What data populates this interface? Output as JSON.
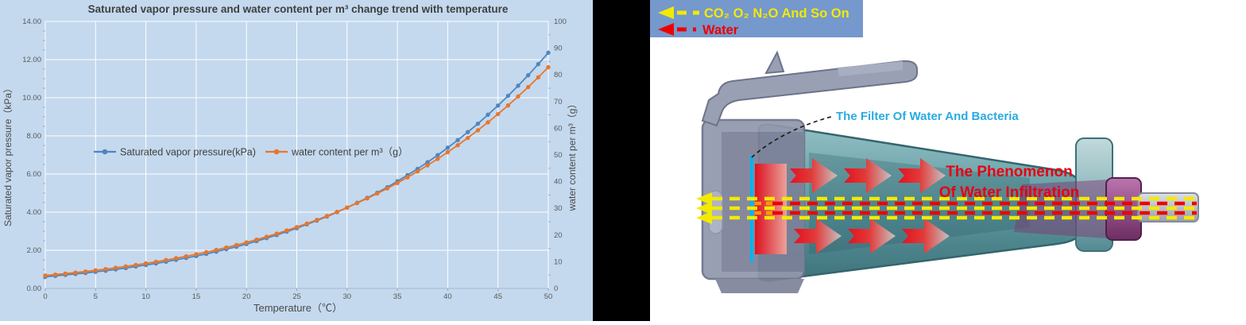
{
  "colors": {
    "chart_bg": "#c4d9ee",
    "gridline": "#ffffff",
    "series_blue": "#4e86c0",
    "series_orange": "#e8762c",
    "legend_bg": "#7598cd",
    "gas_yellow": "#f2ea00",
    "water_red": "#ee0000",
    "filter_cyan": "#00b4f0",
    "label_cyan": "#29abe2",
    "phenomenon_red": "#e60012"
  },
  "chart_data": {
    "type": "line",
    "title": "Saturated vapor pressure and water content per m³ change trend with temperature",
    "xlabel": "Temperature（℃）",
    "ylabel_left": "Saturated vapor pressure（kPa）",
    "ylabel_right": "water content per m³（g）",
    "xlim": [
      0,
      50
    ],
    "ylim_left": [
      0,
      14
    ],
    "ylim_right": [
      0,
      100
    ],
    "grid": true,
    "legend_position": "inside-upper-left",
    "x_tick_values": [
      0,
      5,
      10,
      15,
      20,
      25,
      30,
      35,
      40,
      45,
      50
    ],
    "x_tick_labels": [
      "0",
      "5",
      "10",
      "15",
      "20",
      "25",
      "30",
      "35",
      "40",
      "45",
      "50"
    ],
    "y_left_tick_values": [
      0,
      2,
      4,
      6,
      8,
      10,
      12,
      14
    ],
    "y_left_tick_labels": [
      "0.00",
      "2.00",
      "4.00",
      "6.00",
      "8.00",
      "10.00",
      "12.00",
      "14.00"
    ],
    "y_right_tick_values": [
      0,
      10,
      20,
      30,
      40,
      50,
      60,
      70,
      80,
      90,
      100
    ],
    "y_right_tick_labels": [
      "0",
      "10",
      "20",
      "30",
      "40",
      "50",
      "60",
      "70",
      "80",
      "90",
      "100"
    ],
    "temperatures": [
      0,
      1,
      2,
      3,
      4,
      5,
      6,
      7,
      8,
      9,
      10,
      11,
      12,
      13,
      14,
      15,
      16,
      17,
      18,
      19,
      20,
      21,
      22,
      23,
      24,
      25,
      26,
      27,
      28,
      29,
      30,
      31,
      32,
      33,
      34,
      35,
      36,
      37,
      38,
      39,
      40,
      41,
      42,
      43,
      44,
      45,
      46,
      47,
      48,
      49,
      50
    ],
    "series": [
      {
        "name": "Saturated vapor pressure(kPa)",
        "axis": "left",
        "color": "#4e86c0",
        "values": [
          0.61,
          0.66,
          0.71,
          0.76,
          0.81,
          0.87,
          0.93,
          1.0,
          1.07,
          1.15,
          1.23,
          1.31,
          1.4,
          1.5,
          1.6,
          1.7,
          1.81,
          1.93,
          2.06,
          2.19,
          2.33,
          2.48,
          2.64,
          2.8,
          2.98,
          3.16,
          3.36,
          3.56,
          3.77,
          4.0,
          4.24,
          4.49,
          4.75,
          5.02,
          5.31,
          5.62,
          5.94,
          6.27,
          6.62,
          6.99,
          7.38,
          7.78,
          8.2,
          8.64,
          9.11,
          9.59,
          10.1,
          10.63,
          11.18,
          11.76,
          12.36
        ]
      },
      {
        "name": "water content per m³（g）",
        "axis": "right",
        "color": "#e8762c",
        "values": [
          4.85,
          5.19,
          5.56,
          5.94,
          6.35,
          6.79,
          7.25,
          7.74,
          8.26,
          8.8,
          9.38,
          9.99,
          10.64,
          11.32,
          12.04,
          12.8,
          13.6,
          14.44,
          15.33,
          16.26,
          17.25,
          18.28,
          19.37,
          20.51,
          21.72,
          22.98,
          24.3,
          25.69,
          27.15,
          28.68,
          30.28,
          31.96,
          33.72,
          35.56,
          37.49,
          39.5,
          41.61,
          43.81,
          46.12,
          48.52,
          51.03,
          53.65,
          56.39,
          59.24,
          62.22,
          65.32,
          68.55,
          71.92,
          75.42,
          79.06,
          82.86
        ]
      }
    ]
  },
  "right_panel": {
    "legend": {
      "items": [
        {
          "label": "CO₂ O₂ N₂O And So On",
          "color": "#f2ea00"
        },
        {
          "label": "Water",
          "color": "#ee0000"
        }
      ]
    },
    "filter_label": "The Filter Of Water And Bacteria",
    "phenomenon_line1": "The Phenomenon",
    "phenomenon_line2": "Of Water Infiltration"
  }
}
